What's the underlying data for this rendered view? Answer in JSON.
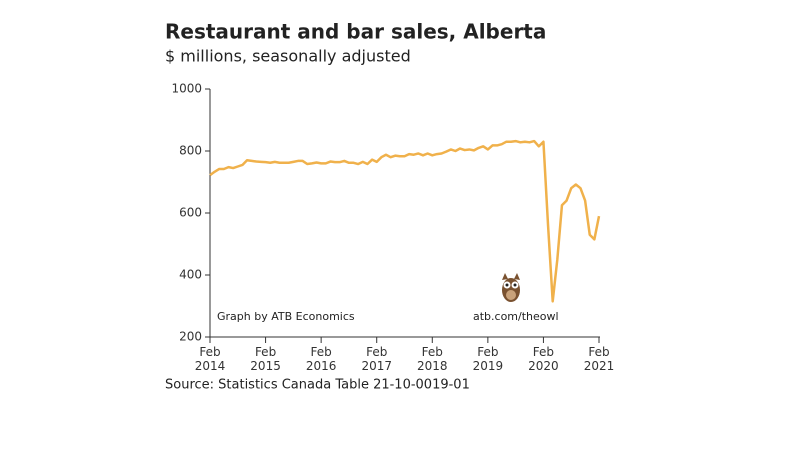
{
  "chart_data": {
    "type": "line",
    "title": "Restaurant and bar sales, Alberta",
    "subtitle": "$ millions, seasonally adjusted",
    "source": "Source: Statistics Canada Table 21-10-0019-01",
    "annotations": [
      "Graph by ATB Economics",
      "atb.com/theowl"
    ],
    "x": [
      "2014-02",
      "2014-03",
      "2014-04",
      "2014-05",
      "2014-06",
      "2014-07",
      "2014-08",
      "2014-09",
      "2014-10",
      "2014-11",
      "2014-12",
      "2015-01",
      "2015-02",
      "2015-03",
      "2015-04",
      "2015-05",
      "2015-06",
      "2015-07",
      "2015-08",
      "2015-09",
      "2015-10",
      "2015-11",
      "2015-12",
      "2016-01",
      "2016-02",
      "2016-03",
      "2016-04",
      "2016-05",
      "2016-06",
      "2016-07",
      "2016-08",
      "2016-09",
      "2016-10",
      "2016-11",
      "2016-12",
      "2017-01",
      "2017-02",
      "2017-03",
      "2017-04",
      "2017-05",
      "2017-06",
      "2017-07",
      "2017-08",
      "2017-09",
      "2017-10",
      "2017-11",
      "2017-12",
      "2018-01",
      "2018-02",
      "2018-03",
      "2018-04",
      "2018-05",
      "2018-06",
      "2018-07",
      "2018-08",
      "2018-09",
      "2018-10",
      "2018-11",
      "2018-12",
      "2019-01",
      "2019-02",
      "2019-03",
      "2019-04",
      "2019-05",
      "2019-06",
      "2019-07",
      "2019-08",
      "2019-09",
      "2019-10",
      "2019-11",
      "2019-12",
      "2020-01",
      "2020-02",
      "2020-03",
      "2020-04",
      "2020-05",
      "2020-06",
      "2020-07",
      "2020-08",
      "2020-09",
      "2020-10",
      "2020-11",
      "2020-12",
      "2021-01",
      "2021-02"
    ],
    "series": [
      {
        "color": "#f0b14b",
        "values": [
          722,
          733,
          742,
          742,
          748,
          745,
          750,
          755,
          770,
          768,
          766,
          765,
          764,
          762,
          765,
          762,
          762,
          762,
          765,
          768,
          768,
          758,
          760,
          763,
          760,
          760,
          766,
          764,
          764,
          768,
          762,
          762,
          758,
          765,
          758,
          772,
          765,
          780,
          788,
          780,
          785,
          783,
          783,
          790,
          788,
          792,
          786,
          792,
          786,
          790,
          792,
          798,
          805,
          800,
          808,
          803,
          805,
          802,
          810,
          815,
          805,
          818,
          818,
          822,
          830,
          830,
          832,
          828,
          830,
          828,
          832,
          815,
          830,
          560,
          315,
          450,
          625,
          640,
          680,
          692,
          680,
          640,
          530,
          515,
          590
        ]
      }
    ],
    "xlim": [
      "2014-02",
      "2021-02"
    ],
    "xticks": [
      {
        "value": "2014-02",
        "label": "Feb 2014"
      },
      {
        "value": "2015-02",
        "label": "Feb 2015"
      },
      {
        "value": "2016-02",
        "label": "Feb 2016"
      },
      {
        "value": "2017-02",
        "label": "Feb 2017"
      },
      {
        "value": "2018-02",
        "label": "Feb 2018"
      },
      {
        "value": "2019-02",
        "label": "Feb 2019"
      },
      {
        "value": "2020-02",
        "label": "Feb 2020"
      },
      {
        "value": "2021-02",
        "label": "Feb 2021"
      }
    ],
    "ylim": [
      200,
      1000
    ],
    "yticks": [
      200,
      400,
      600,
      800,
      1000
    ]
  }
}
